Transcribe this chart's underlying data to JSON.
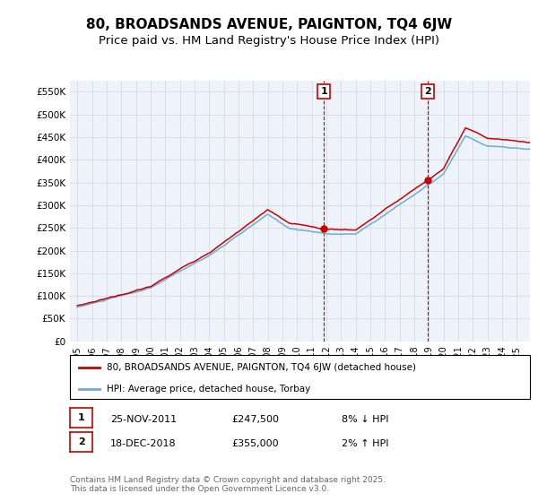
{
  "title": "80, BROADSANDS AVENUE, PAIGNTON, TQ4 6JW",
  "subtitle": "Price paid vs. HM Land Registry's House Price Index (HPI)",
  "ylabel_ticks": [
    "£0",
    "£50K",
    "£100K",
    "£150K",
    "£200K",
    "£250K",
    "£300K",
    "£350K",
    "£400K",
    "£450K",
    "£500K",
    "£550K"
  ],
  "ytick_values": [
    0,
    50000,
    100000,
    150000,
    200000,
    250000,
    300000,
    350000,
    400000,
    450000,
    500000,
    550000
  ],
  "ylim": [
    0,
    575000
  ],
  "sale1_price": 247500,
  "sale1_date_str": "25-NOV-2011",
  "sale1_pct": "8% ↓ HPI",
  "sale1_t": 2011.833,
  "sale2_price": 355000,
  "sale2_date_str": "18-DEC-2018",
  "sale2_pct": "2% ↑ HPI",
  "sale2_t": 2018.917,
  "hpi_color": "#6baed6",
  "price_color": "#cc0000",
  "marker_color": "#cc0000",
  "grid_color": "#dddddd",
  "background_color": "#eef2fb",
  "legend_label_price": "80, BROADSANDS AVENUE, PAIGNTON, TQ4 6JW (detached house)",
  "legend_label_hpi": "HPI: Average price, detached house, Torbay",
  "footnote": "Contains HM Land Registry data © Crown copyright and database right 2025.\nThis data is licensed under the Open Government Licence v3.0.",
  "title_fontsize": 11,
  "subtitle_fontsize": 9.5,
  "start_year": 1995,
  "end_year": 2025
}
